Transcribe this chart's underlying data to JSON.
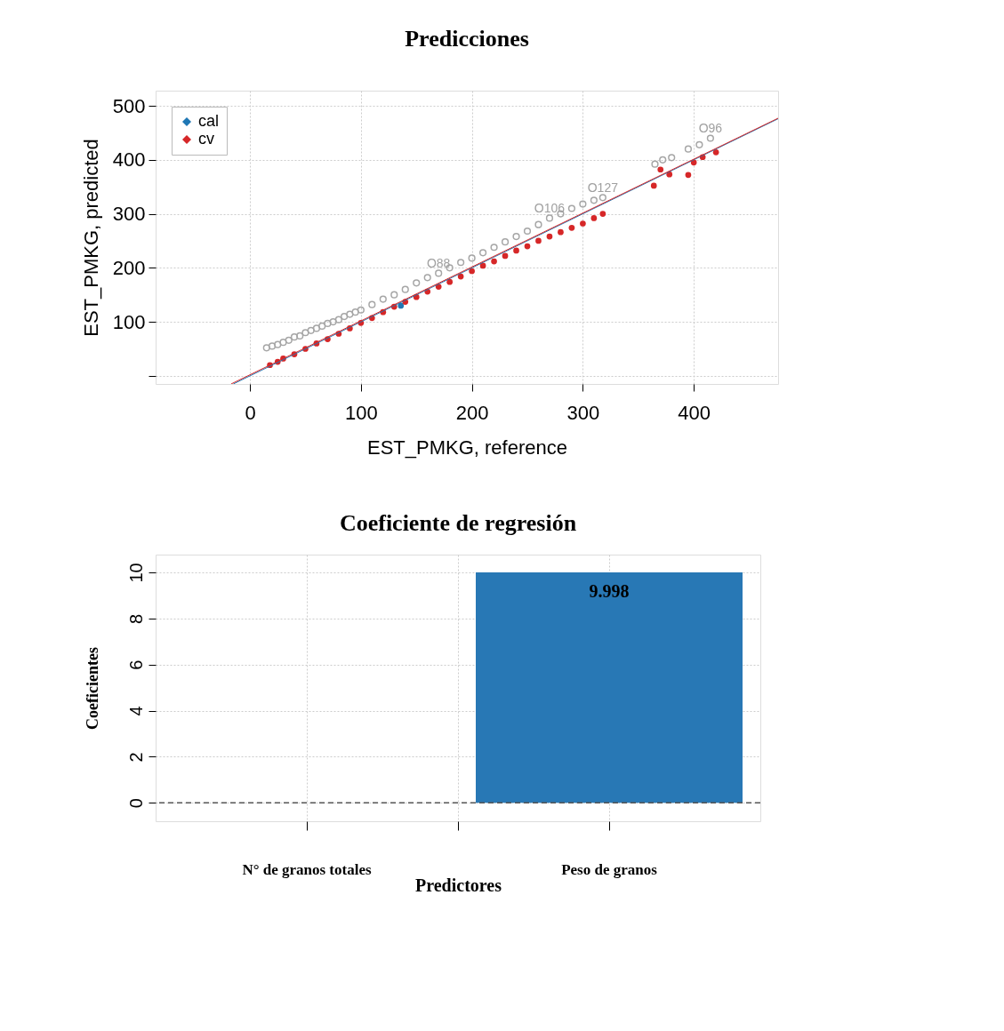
{
  "chart_data": [
    {
      "type": "scatter",
      "title": "Predicciones",
      "xlabel": "EST_PMKG, reference",
      "ylabel": "EST_PMKG, predicted",
      "xlim": [
        -85,
        476
      ],
      "ylim": [
        -15,
        528
      ],
      "xticks": [
        0,
        100,
        200,
        300,
        400
      ],
      "yticks": [
        {
          "value": 0,
          "label": null
        },
        100,
        200,
        300,
        400,
        500
      ],
      "grid": true,
      "legend": "top left",
      "series": [
        {
          "name": "cal",
          "color": "#1f77b4",
          "type": "scatter",
          "marker": "circle",
          "x": [
            136
          ],
          "values": [
            130
          ]
        },
        {
          "name": "cv",
          "color": "#d62728",
          "type": "scatter",
          "marker": "circle",
          "x": [
            18,
            25,
            30,
            40,
            50,
            60,
            70,
            80,
            90,
            100,
            110,
            120,
            130,
            140,
            150,
            160,
            170,
            180,
            190,
            200,
            210,
            220,
            230,
            240,
            250,
            260,
            270,
            280,
            290,
            300,
            310,
            318,
            364,
            370,
            378,
            395,
            400,
            408,
            420
          ],
          "values": [
            20,
            26,
            32,
            40,
            50,
            60,
            68,
            78,
            88,
            98,
            107,
            118,
            128,
            137,
            146,
            156,
            165,
            174,
            184,
            194,
            204,
            212,
            222,
            232,
            240,
            250,
            258,
            266,
            274,
            282,
            292,
            300,
            352,
            382,
            373,
            372,
            395,
            405,
            414
          ]
        },
        {
          "color": "#a6a6a6",
          "type": "scatter",
          "marker": "circle",
          "x": [
            15,
            20,
            25,
            30,
            35,
            40,
            45,
            50,
            55,
            60,
            65,
            70,
            75,
            80,
            85,
            90,
            95,
            100,
            110,
            120,
            130,
            140,
            150,
            160,
            170,
            180,
            190,
            200,
            210,
            220,
            230,
            240,
            250,
            260,
            270,
            280,
            290,
            300,
            310,
            318,
            365,
            372,
            380,
            395,
            405,
            415
          ],
          "values": [
            52,
            55,
            58,
            62,
            66,
            72,
            74,
            80,
            84,
            88,
            92,
            97,
            100,
            104,
            110,
            114,
            118,
            122,
            132,
            142,
            150,
            160,
            172,
            182,
            190,
            200,
            210,
            218,
            228,
            238,
            248,
            258,
            268,
            280,
            292,
            300,
            310,
            318,
            325,
            330,
            392,
            400,
            404,
            420,
            428,
            440
          ]
        },
        {
          "color": "#1f77b4",
          "type": "line",
          "marker": "none",
          "x": [
            -15,
            476
          ],
          "values": [
            -15,
            476
          ]
        },
        {
          "color": "#d62728",
          "type": "line",
          "marker": "none",
          "x": [
            -17,
            476
          ],
          "values": [
            -15,
            477
          ]
        }
      ],
      "annotations": [
        {
          "text": "O106",
          "x": 270,
          "y": 292
        },
        {
          "text": "O127",
          "x": 318,
          "y": 330
        },
        {
          "text": "O88",
          "x": 170,
          "y": 190
        },
        {
          "text": "O96",
          "x": 415,
          "y": 440
        }
      ]
    },
    {
      "type": "bar",
      "title": "Coeficiente de regresión",
      "xlabel": "Predictores",
      "ylabel": "Coeficientes",
      "categories": [
        "N° de granos totales",
        null,
        "Peso de granos"
      ],
      "values": [
        0,
        0,
        9.998
      ],
      "color": "#2878b5",
      "value_labels": [
        null,
        null,
        "9.998"
      ],
      "ylim": [
        -0.8,
        10.77
      ],
      "yticks": [
        0,
        2,
        4,
        6,
        8,
        10
      ],
      "grid": true,
      "ref_lines": [
        {
          "axis": "y",
          "value": 0,
          "line_style": "dashed",
          "color": "#555555"
        }
      ]
    }
  ]
}
